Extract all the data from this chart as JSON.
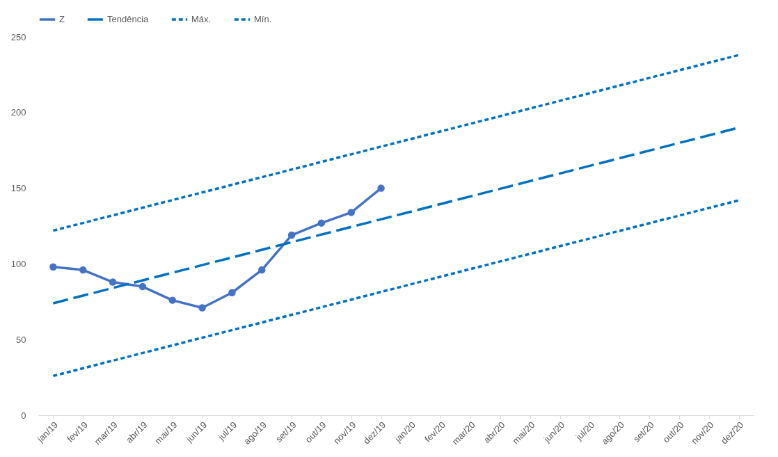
{
  "chart_data": {
    "type": "line",
    "categories": [
      "jan/19",
      "fev/19",
      "mar/19",
      "abr/19",
      "mai/19",
      "jun/19",
      "jul/19",
      "ago/19",
      "set/19",
      "out/19",
      "nov/19",
      "dez/19",
      "jan/20",
      "fev/20",
      "mar/20",
      "abr/20",
      "mai/20",
      "jun/20",
      "jul/20",
      "ago/20",
      "set/20",
      "out/20",
      "nov/20",
      "dez/20"
    ],
    "series": [
      {
        "name": "Z",
        "color": "#4472c4",
        "marker": "circle",
        "line_style": "solid",
        "values": [
          98,
          96,
          88,
          85,
          76,
          71,
          81,
          96,
          119,
          127,
          134,
          150,
          null,
          null,
          null,
          null,
          null,
          null,
          null,
          null,
          null,
          null,
          null,
          null
        ]
      },
      {
        "name": "Tendência",
        "color": "#0070c0",
        "marker": "none",
        "line_style": "dashed",
        "values": [
          74,
          null,
          null,
          null,
          null,
          null,
          null,
          null,
          null,
          null,
          null,
          null,
          null,
          null,
          null,
          null,
          null,
          null,
          null,
          null,
          null,
          null,
          null,
          190
        ]
      },
      {
        "name": "Máx.",
        "color": "#0070c0",
        "marker": "none",
        "line_style": "dotted",
        "values": [
          122,
          null,
          null,
          null,
          null,
          null,
          null,
          null,
          null,
          null,
          null,
          null,
          null,
          null,
          null,
          null,
          null,
          null,
          null,
          null,
          null,
          null,
          null,
          238
        ]
      },
      {
        "name": "Mín.",
        "color": "#0070c0",
        "marker": "none",
        "line_style": "dotted",
        "values": [
          26,
          null,
          null,
          null,
          null,
          null,
          null,
          null,
          null,
          null,
          null,
          null,
          null,
          null,
          null,
          null,
          null,
          null,
          null,
          null,
          null,
          null,
          null,
          142
        ]
      }
    ],
    "ylim": [
      0,
      250
    ],
    "yticks": [
      0,
      50,
      100,
      150,
      200,
      250
    ],
    "grid": false,
    "legend": "top"
  }
}
